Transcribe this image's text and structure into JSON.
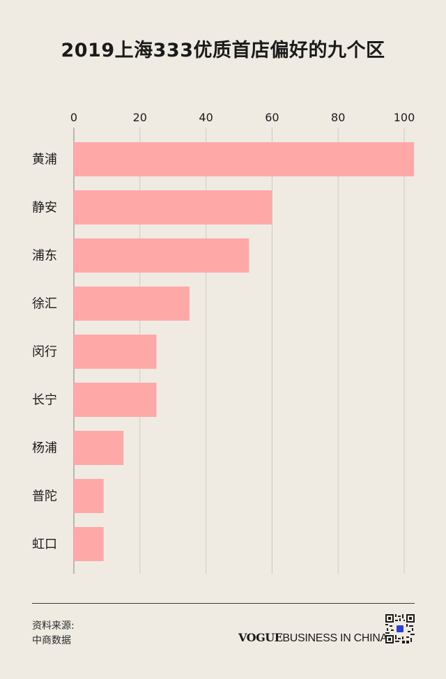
{
  "chart_data": {
    "type": "bar",
    "orientation": "horizontal",
    "title": "2019上海333优质首店偏好的九个区",
    "categories": [
      "黄浦",
      "静安",
      "浦东",
      "徐汇",
      "闵行",
      "长宁",
      "杨浦",
      "普陀",
      "虹口"
    ],
    "values": [
      103,
      60,
      53,
      35,
      25,
      25,
      15,
      9,
      9
    ],
    "xticks": [
      0,
      20,
      40,
      60,
      80,
      100
    ],
    "xlim": [
      0,
      103
    ],
    "grid": true,
    "axis_position": "top",
    "bar_color": "#ffa8a8"
  },
  "footer": {
    "source_label": "资料来源:",
    "source_name": "中商数据",
    "brand_vogue": "VOGUE",
    "brand_rest": "BUSINESS IN CHINA"
  },
  "colors": {
    "background": "#efebe3",
    "grid": "#cfcac1",
    "qr_accent": "#2a3fd6"
  },
  "qr_icon": "qr-code-icon"
}
